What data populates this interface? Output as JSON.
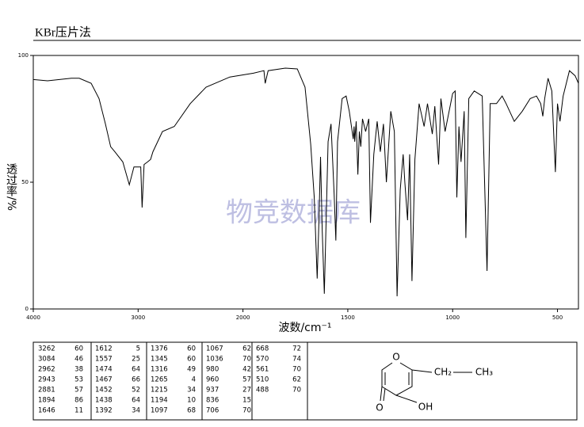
{
  "header": "KBr压片法",
  "watermark": "物竞数据库",
  "chart_data": {
    "type": "line",
    "xlabel": "波数/cm⁻¹",
    "ylabel": "透过率/%",
    "xlim": [
      4000,
      400
    ],
    "xticks": [
      4000,
      3000,
      2000,
      1500,
      1000,
      500
    ],
    "ylim": [
      0,
      100
    ],
    "yticks": [
      0,
      50,
      100
    ],
    "color": "#000000",
    "x": [
      4000,
      3864,
      3637,
      3562,
      3448,
      3373,
      3312,
      3262,
      3222,
      3146,
      3084,
      3040,
      2975,
      2962,
      2943,
      2910,
      2881,
      2859,
      2768,
      2655,
      2503,
      2352,
      2125,
      1950,
      1900,
      1894,
      1880,
      1798,
      1741,
      1704,
      1677,
      1660,
      1646,
      1638,
      1630,
      1622,
      1612,
      1594,
      1580,
      1565,
      1557,
      1549,
      1527,
      1508,
      1493,
      1474,
      1470,
      1467,
      1460,
      1452,
      1445,
      1438,
      1430,
      1415,
      1400,
      1392,
      1376,
      1360,
      1345,
      1330,
      1316,
      1295,
      1278,
      1265,
      1250,
      1236,
      1228,
      1215,
      1205,
      1200,
      1194,
      1180,
      1160,
      1136,
      1120,
      1097,
      1085,
      1067,
      1056,
      1036,
      1000,
      988,
      980,
      970,
      960,
      945,
      937,
      923,
      897,
      859,
      836,
      821,
      791,
      764,
      745,
      706,
      668,
      630,
      600,
      580,
      570,
      561,
      545,
      527,
      510,
      500,
      488,
      473,
      443,
      416,
      400
    ],
    "values": [
      90.5,
      90,
      91,
      91,
      89,
      83,
      73,
      64,
      62,
      58,
      49,
      56,
      56,
      40,
      57,
      58,
      59,
      62,
      70,
      72,
      81,
      87.5,
      91.5,
      93,
      94,
      89,
      94,
      95,
      94.7,
      87.5,
      65,
      44,
      12,
      34,
      60,
      31,
      6,
      66,
      73,
      45,
      27,
      66,
      83,
      84,
      78,
      67,
      72,
      66,
      74,
      53,
      70,
      64,
      75,
      70,
      75,
      34,
      61,
      74,
      62,
      73,
      50,
      78,
      70,
      5,
      47,
      61,
      50,
      35,
      61,
      38,
      11,
      59,
      81,
      72,
      81,
      69,
      80,
      57,
      83,
      70,
      85,
      86,
      44,
      72,
      58,
      78,
      28,
      83,
      86,
      84,
      15,
      81,
      81,
      84,
      81,
      74,
      78,
      83,
      84,
      81,
      76,
      83,
      91,
      86,
      54,
      81,
      74,
      84,
      94,
      92,
      89
    ]
  },
  "peak_table": [
    [
      [
        3262,
        60
      ],
      [
        3084,
        46
      ],
      [
        2962,
        38
      ],
      [
        2943,
        53
      ],
      [
        2881,
        57
      ],
      [
        1894,
        86
      ],
      [
        1646,
        11
      ]
    ],
    [
      [
        1612,
        5
      ],
      [
        1557,
        25
      ],
      [
        1474,
        64
      ],
      [
        1467,
        66
      ],
      [
        1452,
        52
      ],
      [
        1438,
        64
      ],
      [
        1392,
        34
      ]
    ],
    [
      [
        1376,
        60
      ],
      [
        1345,
        60
      ],
      [
        1316,
        49
      ],
      [
        1265,
        4
      ],
      [
        1215,
        34
      ],
      [
        1194,
        10
      ],
      [
        1097,
        68
      ]
    ],
    [
      [
        1067,
        62
      ],
      [
        1036,
        70
      ],
      [
        980,
        42
      ],
      [
        960,
        57
      ],
      [
        937,
        27
      ],
      [
        836,
        15
      ],
      [
        706,
        70
      ]
    ],
    [
      [
        668,
        72
      ],
      [
        570,
        74
      ],
      [
        561,
        70
      ],
      [
        510,
        62
      ],
      [
        488,
        70
      ]
    ]
  ],
  "structure": {
    "ring_o": "O",
    "carbonyl_o": "O",
    "hydroxyl": "OH",
    "ch2": "CH₂",
    "ch3": "CH₃"
  }
}
